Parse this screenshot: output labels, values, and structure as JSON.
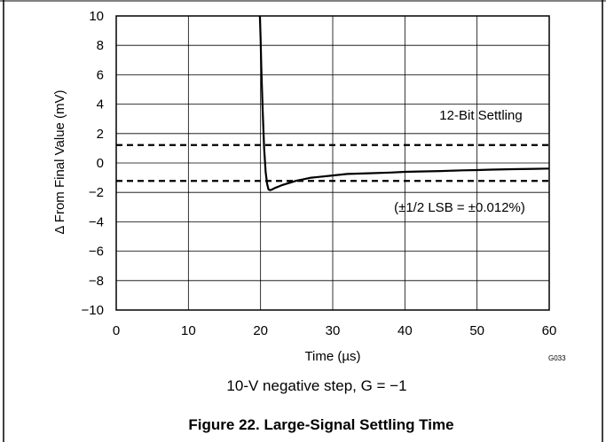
{
  "chart_data": {
    "type": "line",
    "xlabel": "Time (µs)",
    "ylabel": "Δ From Final Value (mV)",
    "xlim": [
      0,
      60
    ],
    "ylim": [
      -10,
      10
    ],
    "x_ticks": [
      "0",
      "10",
      "20",
      "30",
      "40",
      "50",
      "60"
    ],
    "y_ticks": [
      "10",
      "8",
      "6",
      "4",
      "2",
      "0",
      "−2",
      "−4",
      "−6",
      "−8",
      "−10"
    ],
    "grid": true,
    "series": [
      {
        "x": [
          19.9,
          20.0,
          20.1,
          20.3,
          20.5,
          20.7,
          20.9,
          21.1,
          21.3,
          21.6,
          22.0,
          22.5,
          23.0,
          24.0,
          25.0,
          26.0,
          27.0,
          28.0,
          30.0,
          32.0,
          35.0,
          38.0,
          40.0,
          42.0,
          45.0,
          48.0,
          50.0,
          52.0,
          55.0,
          58.0,
          60.0
        ],
        "y": [
          10.0,
          8.5,
          6.5,
          3.5,
          1.0,
          -0.6,
          -1.4,
          -1.8,
          -1.85,
          -1.8,
          -1.7,
          -1.6,
          -1.5,
          -1.35,
          -1.2,
          -1.1,
          -1.0,
          -0.95,
          -0.85,
          -0.75,
          -0.7,
          -0.65,
          -0.6,
          -0.58,
          -0.55,
          -0.5,
          -0.48,
          -0.45,
          -0.42,
          -0.4,
          -0.38
        ]
      }
    ],
    "reference_lines": [
      {
        "y": 1.22,
        "style": "dashed"
      },
      {
        "y": -1.22,
        "style": "dashed"
      }
    ],
    "annotations": {
      "settling": "12-Bit Settling",
      "lsb": "(±1/2 LSB = ±0.012%)"
    }
  },
  "code": "G033",
  "conditions": "10-V negative step, G = −1",
  "caption": "Figure 22. Large-Signal Settling Time"
}
